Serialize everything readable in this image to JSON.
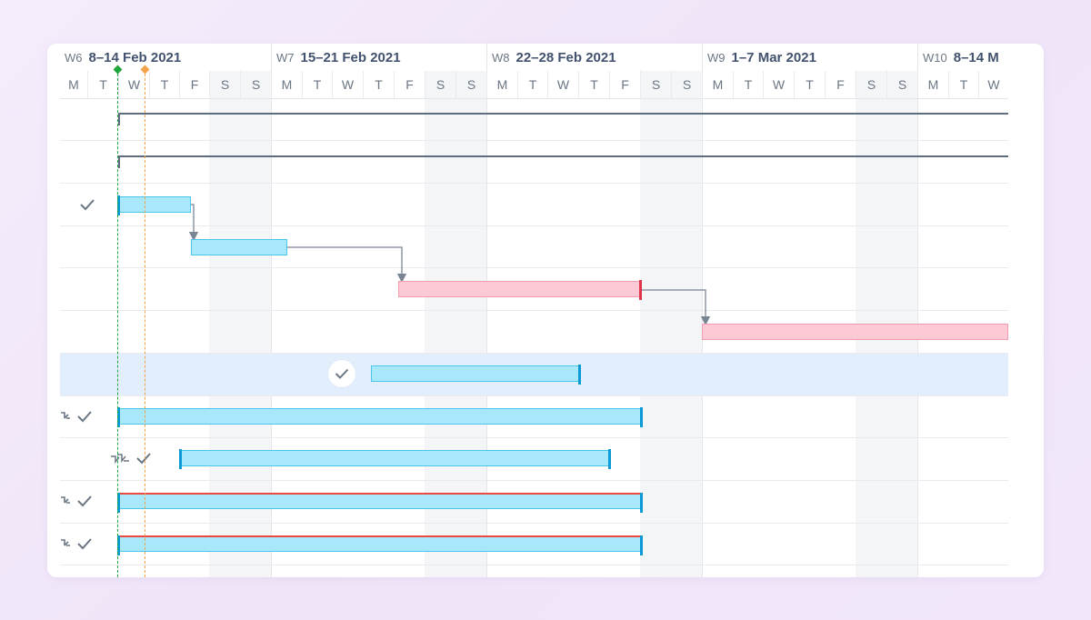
{
  "timeline": {
    "weeks": [
      {
        "num": "W6",
        "range": "8–14 Feb 2021"
      },
      {
        "num": "W7",
        "range": "15–21 Feb 2021"
      },
      {
        "num": "W8",
        "range": "22–28 Feb 2021"
      },
      {
        "num": "W9",
        "range": "1–7 Mar 2021"
      },
      {
        "num": "W10",
        "range": "8–14 M"
      }
    ],
    "days": [
      "M",
      "T",
      "W",
      "T",
      "F",
      "S",
      "S",
      "M",
      "T",
      "W",
      "T",
      "F",
      "S",
      "S",
      "M",
      "T",
      "W",
      "T",
      "F",
      "S",
      "S",
      "M",
      "T",
      "W",
      "T",
      "F",
      "S",
      "S",
      "M",
      "T",
      "W"
    ]
  },
  "colors": {
    "task_bar": "#a9e8fa",
    "late_bar": "#fcc9d5",
    "critical_border": "#e94a3f",
    "today_line": "#1fa63a",
    "marker_line": "#f4a24a",
    "row_highlight": "#e3eefc"
  },
  "icons": {
    "done": "check-icon",
    "dependency": "link-icon",
    "lag": "double-link-icon"
  }
}
